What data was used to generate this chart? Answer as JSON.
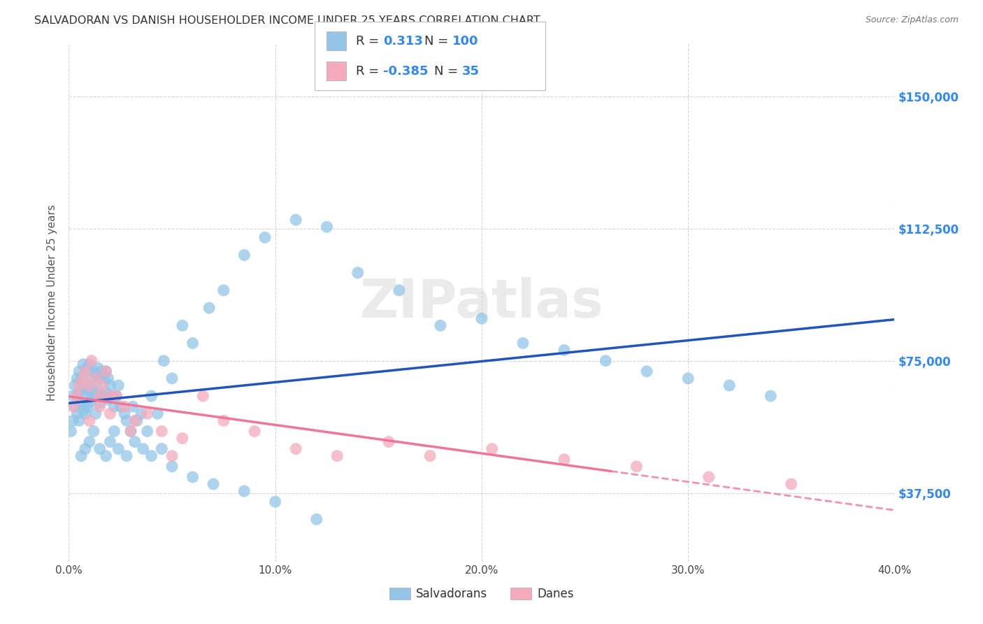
{
  "title": "SALVADORAN VS DANISH HOUSEHOLDER INCOME UNDER 25 YEARS CORRELATION CHART",
  "source": "Source: ZipAtlas.com",
  "ylabel": "Householder Income Under 25 years",
  "ytick_labels": [
    "$37,500",
    "$75,000",
    "$112,500",
    "$150,000"
  ],
  "ytick_values": [
    37500,
    75000,
    112500,
    150000
  ],
  "ylim": [
    18000,
    165000
  ],
  "xlim": [
    0.0,
    0.4
  ],
  "xtick_positions": [
    0.0,
    0.1,
    0.2,
    0.3,
    0.4
  ],
  "xtick_labels": [
    "0.0%",
    "10.0%",
    "20.0%",
    "30.0%",
    "40.0%"
  ],
  "legend_blue_r": "0.313",
  "legend_blue_n": "100",
  "legend_pink_r": "-0.385",
  "legend_pink_n": "35",
  "blue_color": "#92C5E8",
  "pink_color": "#F4AABC",
  "line_blue": "#2255BB",
  "line_pink": "#EE7799",
  "watermark": "ZIPatlas",
  "sal_x": [
    0.001,
    0.002,
    0.002,
    0.003,
    0.003,
    0.004,
    0.004,
    0.004,
    0.005,
    0.005,
    0.005,
    0.006,
    0.006,
    0.007,
    0.007,
    0.007,
    0.008,
    0.008,
    0.008,
    0.009,
    0.009,
    0.009,
    0.01,
    0.01,
    0.01,
    0.011,
    0.011,
    0.012,
    0.012,
    0.013,
    0.013,
    0.013,
    0.014,
    0.014,
    0.015,
    0.015,
    0.016,
    0.016,
    0.017,
    0.017,
    0.018,
    0.018,
    0.019,
    0.019,
    0.02,
    0.021,
    0.022,
    0.023,
    0.024,
    0.025,
    0.027,
    0.028,
    0.03,
    0.031,
    0.033,
    0.035,
    0.038,
    0.04,
    0.043,
    0.046,
    0.05,
    0.055,
    0.06,
    0.068,
    0.075,
    0.085,
    0.095,
    0.11,
    0.125,
    0.14,
    0.16,
    0.18,
    0.2,
    0.22,
    0.24,
    0.26,
    0.28,
    0.3,
    0.32,
    0.34,
    0.006,
    0.008,
    0.01,
    0.012,
    0.015,
    0.018,
    0.02,
    0.022,
    0.024,
    0.028,
    0.032,
    0.036,
    0.04,
    0.045,
    0.05,
    0.06,
    0.07,
    0.085,
    0.1,
    0.12
  ],
  "sal_y": [
    55000,
    65000,
    58000,
    68000,
    62000,
    70000,
    65000,
    60000,
    72000,
    66000,
    58000,
    70000,
    63000,
    74000,
    67000,
    61000,
    72000,
    65000,
    60000,
    73000,
    67000,
    62000,
    74000,
    68000,
    63000,
    70000,
    65000,
    72000,
    66000,
    71000,
    65000,
    60000,
    73000,
    67000,
    70000,
    63000,
    72000,
    65000,
    70000,
    65000,
    72000,
    66000,
    70000,
    64000,
    68000,
    65000,
    62000,
    65000,
    68000,
    62000,
    60000,
    58000,
    55000,
    62000,
    58000,
    60000,
    55000,
    65000,
    60000,
    75000,
    70000,
    85000,
    80000,
    90000,
    95000,
    105000,
    110000,
    115000,
    113000,
    100000,
    95000,
    85000,
    87000,
    80000,
    78000,
    75000,
    72000,
    70000,
    68000,
    65000,
    48000,
    50000,
    52000,
    55000,
    50000,
    48000,
    52000,
    55000,
    50000,
    48000,
    52000,
    50000,
    48000,
    50000,
    45000,
    42000,
    40000,
    38000,
    35000,
    30000
  ],
  "danes_x": [
    0.002,
    0.004,
    0.005,
    0.007,
    0.008,
    0.01,
    0.011,
    0.013,
    0.015,
    0.016,
    0.018,
    0.02,
    0.023,
    0.027,
    0.032,
    0.038,
    0.045,
    0.055,
    0.065,
    0.075,
    0.09,
    0.11,
    0.13,
    0.155,
    0.175,
    0.205,
    0.24,
    0.275,
    0.31,
    0.35,
    0.01,
    0.015,
    0.02,
    0.03,
    0.05
  ],
  "danes_y": [
    62000,
    65000,
    68000,
    70000,
    72000,
    68000,
    75000,
    70000,
    65000,
    68000,
    72000,
    65000,
    65000,
    62000,
    58000,
    60000,
    55000,
    53000,
    65000,
    58000,
    55000,
    50000,
    48000,
    52000,
    48000,
    50000,
    47000,
    45000,
    42000,
    40000,
    58000,
    62000,
    60000,
    55000,
    48000
  ]
}
